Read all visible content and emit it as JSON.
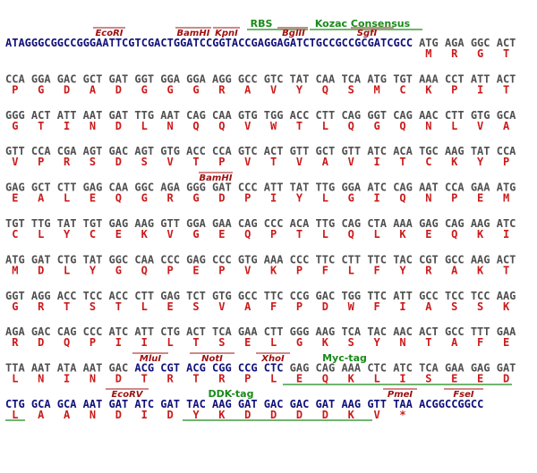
{
  "sequence": {
    "rows": [
      {
        "prefix": "ATAGGGCGGCCGGGAATTCGTCGACTGGATCCGGTACCGAGGAGATCTGCCGCCGCGATCGCC",
        "codons": [
          "ATG",
          "AGA",
          "GGC",
          "ACT"
        ],
        "amino_acids": [
          "M",
          "R",
          "G",
          "T"
        ]
      },
      {
        "codons": [
          "CCA",
          "GGA",
          "GAC",
          "GCT",
          "GAT",
          "GGT",
          "GGA",
          "GGA",
          "AGG",
          "GCC",
          "GTC",
          "TAT",
          "CAA",
          "TCA",
          "ATG",
          "TGT",
          "AAA",
          "CCT",
          "ATT",
          "ACT"
        ],
        "amino_acids": [
          "P",
          "G",
          "D",
          "A",
          "D",
          "G",
          "G",
          "G",
          "R",
          "A",
          "V",
          "Y",
          "Q",
          "S",
          "M",
          "C",
          "K",
          "P",
          "I",
          "T"
        ]
      },
      {
        "codons": [
          "GGG",
          "ACT",
          "ATT",
          "AAT",
          "GAT",
          "TTG",
          "AAT",
          "CAG",
          "CAA",
          "GTG",
          "TGG",
          "ACC",
          "CTT",
          "CAG",
          "GGT",
          "CAG",
          "AAC",
          "CTT",
          "GTG",
          "GCA"
        ],
        "amino_acids": [
          "G",
          "T",
          "I",
          "N",
          "D",
          "L",
          "N",
          "Q",
          "Q",
          "V",
          "W",
          "T",
          "L",
          "Q",
          "G",
          "Q",
          "N",
          "L",
          "V",
          "A"
        ]
      },
      {
        "codons": [
          "GTT",
          "CCA",
          "CGA",
          "AGT",
          "GAC",
          "AGT",
          "GTG",
          "ACC",
          "CCA",
          "GTC",
          "ACT",
          "GTT",
          "GCT",
          "GTT",
          "ATC",
          "ACA",
          "TGC",
          "AAG",
          "TAT",
          "CCA"
        ],
        "amino_acids": [
          "V",
          "P",
          "R",
          "S",
          "D",
          "S",
          "V",
          "T",
          "P",
          "V",
          "T",
          "V",
          "A",
          "V",
          "I",
          "T",
          "C",
          "K",
          "Y",
          "P"
        ]
      },
      {
        "codons": [
          "GAG",
          "GCT",
          "CTT",
          "GAG",
          "CAA",
          "GGC",
          "AGA",
          "GGG",
          "GAT",
          "CCC",
          "ATT",
          "TAT",
          "TTG",
          "GGA",
          "ATC",
          "CAG",
          "AAT",
          "CCA",
          "GAA",
          "ATG"
        ],
        "amino_acids": [
          "E",
          "A",
          "L",
          "E",
          "Q",
          "G",
          "R",
          "G",
          "D",
          "P",
          "I",
          "Y",
          "L",
          "G",
          "I",
          "Q",
          "N",
          "P",
          "E",
          "M"
        ]
      },
      {
        "codons": [
          "TGT",
          "TTG",
          "TAT",
          "TGT",
          "GAG",
          "AAG",
          "GTT",
          "GGA",
          "GAA",
          "CAG",
          "CCC",
          "ACA",
          "TTG",
          "CAG",
          "CTA",
          "AAA",
          "GAG",
          "CAG",
          "AAG",
          "ATC"
        ],
        "amino_acids": [
          "C",
          "L",
          "Y",
          "C",
          "E",
          "K",
          "V",
          "G",
          "E",
          "Q",
          "P",
          "T",
          "L",
          "Q",
          "L",
          "K",
          "E",
          "Q",
          "K",
          "I"
        ]
      },
      {
        "codons": [
          "ATG",
          "GAT",
          "CTG",
          "TAT",
          "GGC",
          "CAA",
          "CCC",
          "GAG",
          "CCC",
          "GTG",
          "AAA",
          "CCC",
          "TTC",
          "CTT",
          "TTC",
          "TAC",
          "CGT",
          "GCC",
          "AAG",
          "ACT"
        ],
        "amino_acids": [
          "M",
          "D",
          "L",
          "Y",
          "G",
          "Q",
          "P",
          "E",
          "P",
          "V",
          "K",
          "P",
          "F",
          "L",
          "F",
          "Y",
          "R",
          "A",
          "K",
          "T"
        ]
      },
      {
        "codons": [
          "GGT",
          "AGG",
          "ACC",
          "TCC",
          "ACC",
          "CTT",
          "GAG",
          "TCT",
          "GTG",
          "GCC",
          "TTC",
          "CCG",
          "GAC",
          "TGG",
          "TTC",
          "ATT",
          "GCC",
          "TCC",
          "TCC",
          "AAG"
        ],
        "amino_acids": [
          "G",
          "R",
          "T",
          "S",
          "T",
          "L",
          "E",
          "S",
          "V",
          "A",
          "F",
          "P",
          "D",
          "W",
          "F",
          "I",
          "A",
          "S",
          "S",
          "K"
        ]
      },
      {
        "codons": [
          "AGA",
          "GAC",
          "CAG",
          "CCC",
          "ATC",
          "ATT",
          "CTG",
          "ACT",
          "TCA",
          "GAA",
          "CTT",
          "GGG",
          "AAG",
          "TCA",
          "TAC",
          "AAC",
          "ACT",
          "GCC",
          "TTT",
          "GAA"
        ],
        "amino_acids": [
          "R",
          "D",
          "Q",
          "P",
          "I",
          "I",
          "L",
          "T",
          "S",
          "E",
          "L",
          "G",
          "K",
          "S",
          "Y",
          "N",
          "T",
          "A",
          "F",
          "E"
        ]
      },
      {
        "codons": [
          "TTA",
          "AAT",
          "ATA",
          "AAT",
          "GAC",
          "ACG",
          "CGT",
          "ACG",
          "CGG",
          "CCG",
          "CTC",
          "GAG",
          "CAG",
          "AAA",
          "CTC",
          "ATC",
          "TCA",
          "GAA",
          "GAG",
          "GAT"
        ],
        "amino_acids": [
          "L",
          "N",
          "I",
          "N",
          "D",
          "T",
          "R",
          "T",
          "R",
          "P",
          "L",
          "E",
          "Q",
          "K",
          "L",
          "I",
          "S",
          "E",
          "E",
          "D"
        ]
      },
      {
        "codons": [
          "CTG",
          "GCA",
          "GCA",
          "AAT",
          "GAT",
          "ATC",
          "GAT",
          "TAC",
          "AAG",
          "GAT",
          "GAC",
          "GAC",
          "GAT",
          "AAG",
          "GTT",
          "TAA"
        ],
        "amino_acids": [
          "L",
          "A",
          "A",
          "N",
          "D",
          "I",
          "D",
          "Y",
          "K",
          "D",
          "D",
          "D",
          "D",
          "K",
          "V",
          "*"
        ],
        "suffix": "ACGGCCGGCC"
      }
    ]
  },
  "annotations": {
    "restriction_sites": [
      "EcoRI",
      "BamHI",
      "KpnI",
      "BglII",
      "SgfI",
      "BamHI",
      "MluI",
      "NotI",
      "XhoI",
      "EcoRV",
      "PmeI",
      "FseI"
    ],
    "features": [
      "RBS",
      "Kozac Consensus",
      "Myc-tag",
      "DDK-tag"
    ]
  }
}
